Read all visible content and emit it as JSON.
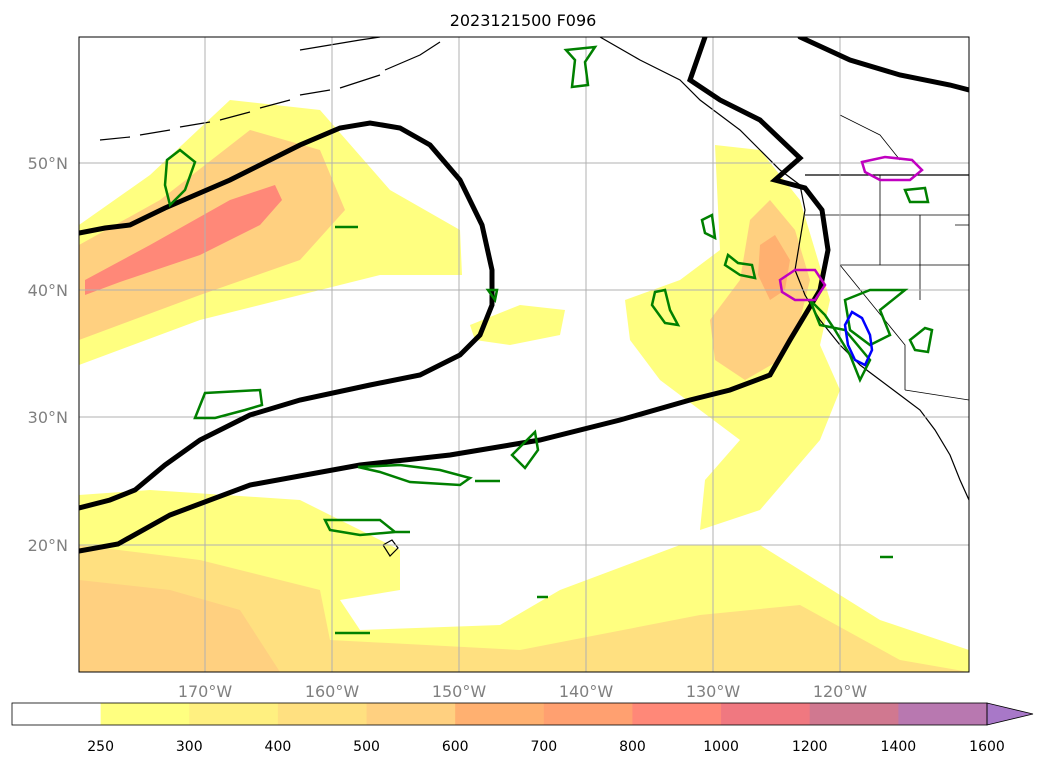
{
  "title": "2023121500 F096",
  "map": {
    "lat_labels": [
      "50°N",
      "40°N",
      "30°N",
      "20°N"
    ],
    "lon_labels": [
      "170°W",
      "160°W",
      "150°W",
      "140°W",
      "130°W",
      "120°W"
    ],
    "gridlines": true
  },
  "colorbar": {
    "levels": [
      "250",
      "300",
      "400",
      "500",
      "600",
      "700",
      "800",
      "1000",
      "1200",
      "1400",
      "1600"
    ],
    "colors": [
      "#ffffff",
      "#ffff80",
      "#fff080",
      "#ffe080",
      "#ffd080",
      "#ffb070",
      "#ffa070",
      "#ff8878",
      "#f07880",
      "#d07890",
      "#b878b0",
      "#a878c8"
    ],
    "extend": "max"
  },
  "contour_colors": {
    "thick_black": "#000000",
    "green": "#008000",
    "blue": "#0000ff",
    "magenta": "#c000c0"
  }
}
